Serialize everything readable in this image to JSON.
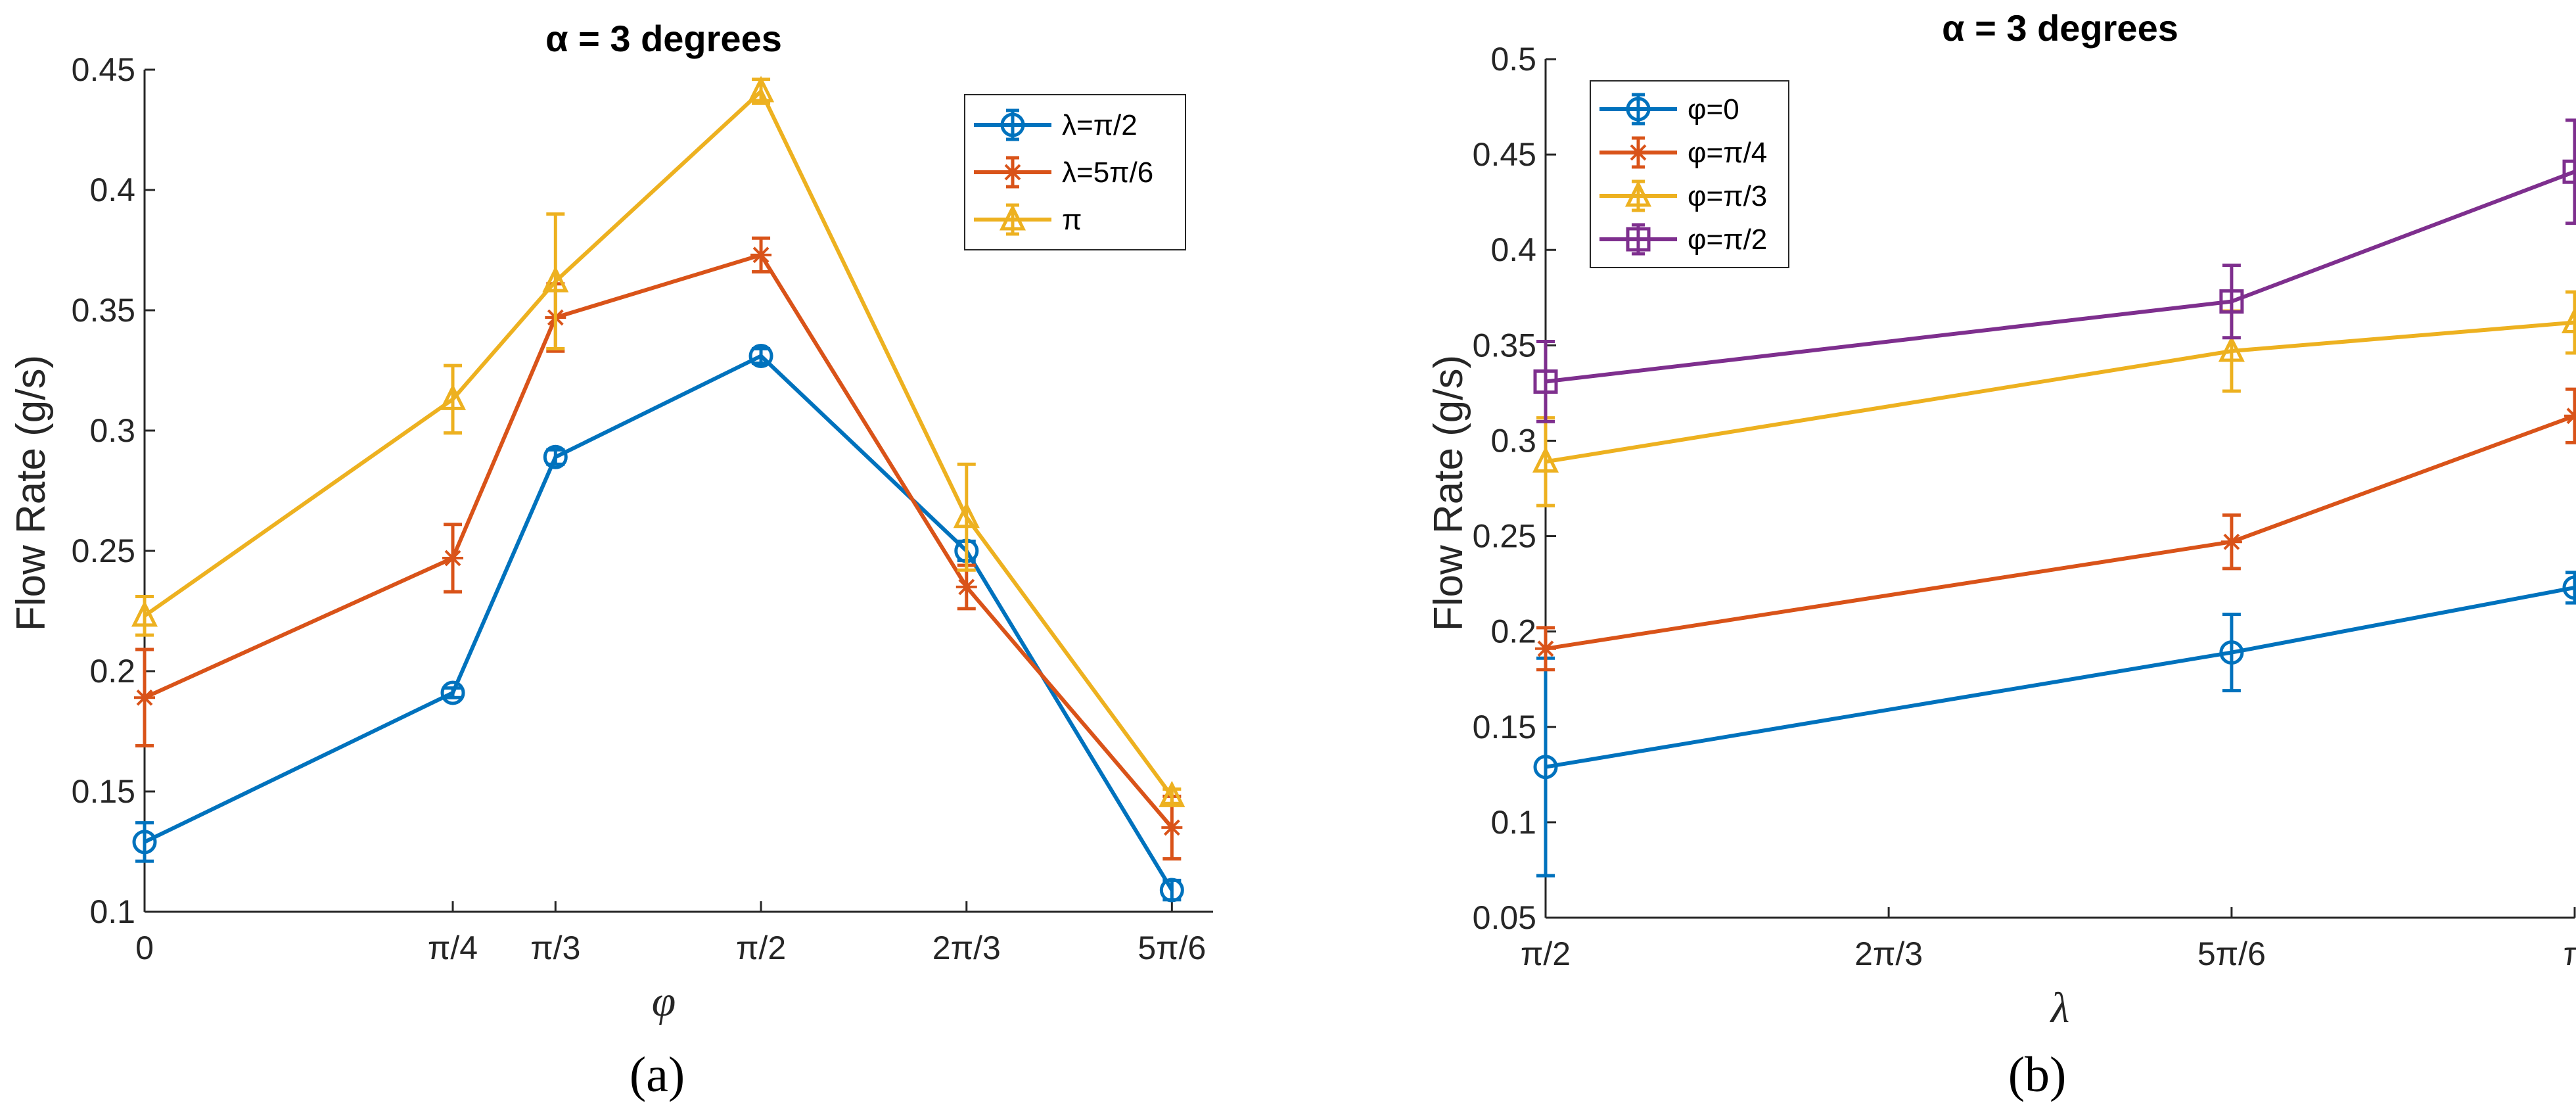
{
  "chart_data": [
    {
      "type": "line",
      "panel_label": "(a)",
      "title": "α = 3 degrees",
      "xlabel": "φ",
      "ylabel": "Flow Rate (g/s)",
      "x_unit": "radians (multiples of π)",
      "x": [
        0,
        0.25,
        0.3333,
        0.5,
        0.6667,
        0.8333
      ],
      "xtick_labels": [
        "0",
        "π/4",
        "π/3",
        "π/2",
        "2π/3",
        "5π/6"
      ],
      "xlim": [
        0,
        0.8667
      ],
      "ylim": [
        0.1,
        0.45
      ],
      "yticks": [
        0.1,
        0.15,
        0.2,
        0.25,
        0.3,
        0.35,
        0.4,
        0.45
      ],
      "ytick_labels": [
        "0.1",
        "0.15",
        "0.2",
        "0.25",
        "0.3",
        "0.35",
        "0.4",
        "0.45"
      ],
      "legend_position": "top-right",
      "series": [
        {
          "name": "λ=π/2",
          "color": "#0072BD",
          "marker": "circle",
          "values": [
            0.129,
            0.191,
            0.289,
            0.331,
            0.25,
            0.109
          ],
          "errors": [
            0.008,
            0.002,
            0.003,
            0.003,
            0.004,
            0.004
          ]
        },
        {
          "name": "λ=5π/6",
          "color": "#D95319",
          "marker": "asterisk",
          "values": [
            0.189,
            0.247,
            0.347,
            0.373,
            0.235,
            0.135
          ],
          "errors": [
            0.02,
            0.014,
            0.014,
            0.007,
            0.009,
            0.013
          ]
        },
        {
          "name": "π",
          "color": "#EDB120",
          "marker": "triangle",
          "values": [
            0.223,
            0.313,
            0.362,
            0.441,
            0.264,
            0.148
          ],
          "errors": [
            0.008,
            0.014,
            0.028,
            0.005,
            0.022,
            0.003
          ]
        }
      ]
    },
    {
      "type": "line",
      "panel_label": "(b)",
      "title": "α = 3 degrees",
      "xlabel": "λ",
      "ylabel": "Flow Rate (g/s)",
      "x_unit": "radians (multiples of π)",
      "x": [
        0.5,
        0.8333,
        1.0
      ],
      "xticks": [
        0.5,
        0.6667,
        0.8333,
        1.0
      ],
      "xtick_labels": [
        "π/2",
        "2π/3",
        "5π/6",
        "π"
      ],
      "xlim": [
        0.5,
        1.0
      ],
      "ylim": [
        0.05,
        0.5
      ],
      "yticks": [
        0.05,
        0.1,
        0.15,
        0.2,
        0.25,
        0.3,
        0.35,
        0.4,
        0.45,
        0.5
      ],
      "ytick_labels": [
        "0.05",
        "0.1",
        "0.15",
        "0.2",
        "0.25",
        "0.3",
        "0.35",
        "0.4",
        "0.45",
        "0.5"
      ],
      "legend_position": "top-left",
      "series": [
        {
          "name": "φ=0",
          "color": "#0072BD",
          "marker": "circle",
          "values": [
            0.129,
            0.189,
            0.223
          ],
          "errors": [
            0.057,
            0.02,
            0.008
          ]
        },
        {
          "name": "φ=π/4",
          "color": "#D95319",
          "marker": "asterisk",
          "values": [
            0.191,
            0.247,
            0.313
          ],
          "errors": [
            0.011,
            0.014,
            0.014
          ]
        },
        {
          "name": "φ=π/3",
          "color": "#EDB120",
          "marker": "triangle",
          "values": [
            0.289,
            0.347,
            0.362
          ],
          "errors": [
            0.023,
            0.021,
            0.016
          ]
        },
        {
          "name": "φ=π/2",
          "color": "#7E2F8E",
          "marker": "square",
          "values": [
            0.331,
            0.373,
            0.441
          ],
          "errors": [
            0.021,
            0.019,
            0.027
          ]
        }
      ]
    }
  ]
}
